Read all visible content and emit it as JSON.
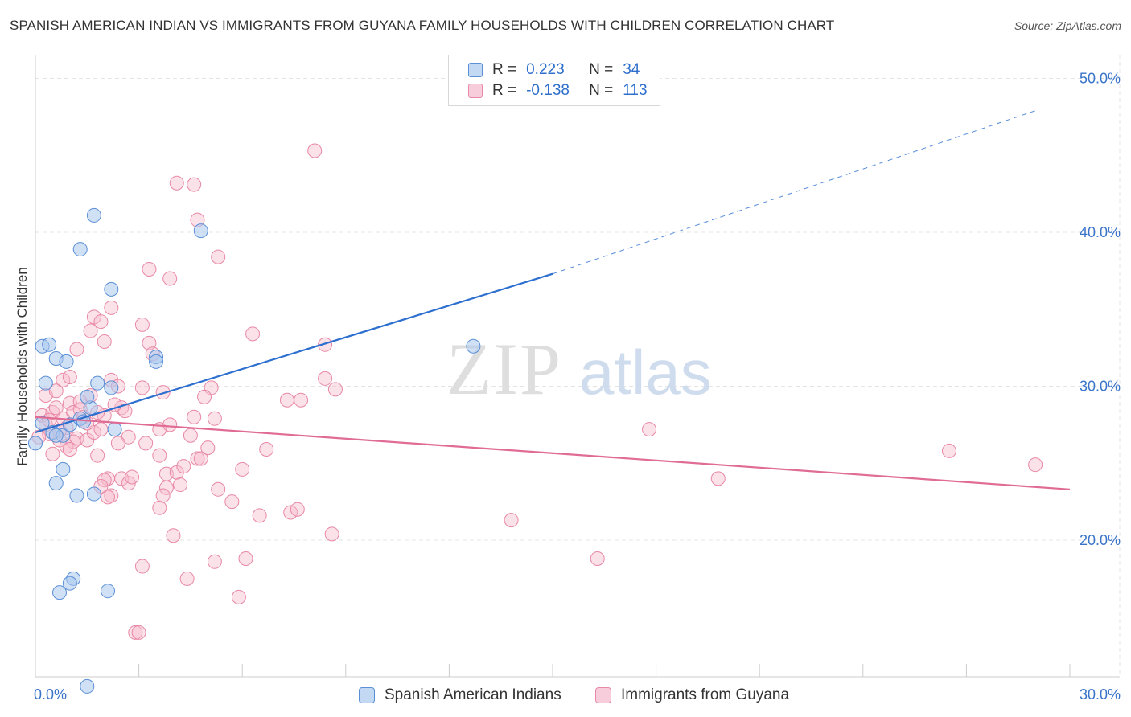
{
  "title": "SPANISH AMERICAN INDIAN VS IMMIGRANTS FROM GUYANA FAMILY HOUSEHOLDS WITH CHILDREN CORRELATION CHART",
  "source": "Source: ZipAtlas.com",
  "watermark": {
    "zip": "ZIP",
    "atlas": "atlas"
  },
  "legend": {
    "series1": {
      "r_label": "R =",
      "r_value": "0.223",
      "n_label": "N =",
      "n_value": "34"
    },
    "series2": {
      "r_label": "R =",
      "r_value": "-0.138",
      "n_label": "N =",
      "n_value": "113"
    }
  },
  "colors": {
    "blue_fill": "#aac8ee",
    "blue_stroke": "#5b8fd6",
    "blue_line": "#2d6fcf",
    "pink_fill": "#f6bccd",
    "pink_stroke": "#e889a6",
    "pink_line": "#e06c95",
    "axis_label": "#3a74c9",
    "grid": "#e4e4e4"
  },
  "chart_data": {
    "type": "scatter",
    "title": "SPANISH AMERICAN INDIAN VS IMMIGRANTS FROM GUYANA FAMILY HOUSEHOLDS WITH CHILDREN CORRELATION CHART",
    "xlabel": "",
    "ylabel": "Family Households with Children",
    "xlim": [
      0,
      30
    ],
    "ylim": [
      10,
      50
    ],
    "x_tick_labels": [
      "0.0%",
      "30.0%"
    ],
    "y_ticks": [
      20,
      30,
      40,
      50
    ],
    "y_tick_labels": [
      "20.0%",
      "30.0%",
      "40.0%",
      "50.0%"
    ],
    "grid": true,
    "legend": [
      "Spanish American Indians",
      "Immigrants from Guyana"
    ],
    "series": [
      {
        "name": "Spanish American Indians",
        "trend": {
          "x0": 0,
          "y0": 27.0,
          "x1": 15.0,
          "y1": 37.3,
          "dash_to_x": 29.0,
          "dash_to_y": 47.9
        },
        "points": [
          [
            0.0,
            26.3
          ],
          [
            0.2,
            32.6
          ],
          [
            0.4,
            32.7
          ],
          [
            0.6,
            31.8
          ],
          [
            0.3,
            30.2
          ],
          [
            0.9,
            31.6
          ],
          [
            0.2,
            27.6
          ],
          [
            0.5,
            27.0
          ],
          [
            0.8,
            26.8
          ],
          [
            1.0,
            27.5
          ],
          [
            1.3,
            27.9
          ],
          [
            1.6,
            28.6
          ],
          [
            1.5,
            29.3
          ],
          [
            1.8,
            30.2
          ],
          [
            2.2,
            29.9
          ],
          [
            0.6,
            23.7
          ],
          [
            0.8,
            24.6
          ],
          [
            1.2,
            22.9
          ],
          [
            1.7,
            23.0
          ],
          [
            1.1,
            17.5
          ],
          [
            1.0,
            17.2
          ],
          [
            0.7,
            16.6
          ],
          [
            2.1,
            16.7
          ],
          [
            1.3,
            38.9
          ],
          [
            1.7,
            41.1
          ],
          [
            2.2,
            36.3
          ],
          [
            3.5,
            31.9
          ],
          [
            3.5,
            31.6
          ],
          [
            4.8,
            40.1
          ],
          [
            12.7,
            32.6
          ],
          [
            1.5,
            10.5
          ],
          [
            0.6,
            26.8
          ],
          [
            1.4,
            27.7
          ],
          [
            2.3,
            27.2
          ]
        ]
      },
      {
        "name": "Immigrants from Guyana",
        "trend": {
          "x0": 0,
          "y0": 28.0,
          "x1": 30.0,
          "y1": 23.3
        },
        "points": [
          [
            0.2,
            28.1
          ],
          [
            0.3,
            27.5
          ],
          [
            0.4,
            26.9
          ],
          [
            0.5,
            28.3
          ],
          [
            0.7,
            26.5
          ],
          [
            0.8,
            27.9
          ],
          [
            0.9,
            27.3
          ],
          [
            1.0,
            28.9
          ],
          [
            1.1,
            28.3
          ],
          [
            1.2,
            26.6
          ],
          [
            1.3,
            28.5
          ],
          [
            1.4,
            28.0
          ],
          [
            0.3,
            29.4
          ],
          [
            0.6,
            29.7
          ],
          [
            0.8,
            30.4
          ],
          [
            1.0,
            30.6
          ],
          [
            0.5,
            25.6
          ],
          [
            1.1,
            26.4
          ],
          [
            1.5,
            26.5
          ],
          [
            1.7,
            27.0
          ],
          [
            1.9,
            27.2
          ],
          [
            2.0,
            28.1
          ],
          [
            2.2,
            30.4
          ],
          [
            2.4,
            30.0
          ],
          [
            2.5,
            28.6
          ],
          [
            2.6,
            28.4
          ],
          [
            2.7,
            26.7
          ],
          [
            1.8,
            25.5
          ],
          [
            2.1,
            24.0
          ],
          [
            2.5,
            24.0
          ],
          [
            2.0,
            23.9
          ],
          [
            2.2,
            22.9
          ],
          [
            2.1,
            22.8
          ],
          [
            2.7,
            23.7
          ],
          [
            1.2,
            32.4
          ],
          [
            1.6,
            33.6
          ],
          [
            1.7,
            34.5
          ],
          [
            1.9,
            34.2
          ],
          [
            2.0,
            32.9
          ],
          [
            2.2,
            35.1
          ],
          [
            3.3,
            37.6
          ],
          [
            3.1,
            34.0
          ],
          [
            3.3,
            32.8
          ],
          [
            3.4,
            32.1
          ],
          [
            3.1,
            29.9
          ],
          [
            3.7,
            29.6
          ],
          [
            3.6,
            27.2
          ],
          [
            3.9,
            27.5
          ],
          [
            3.6,
            25.5
          ],
          [
            3.8,
            24.3
          ],
          [
            4.1,
            24.4
          ],
          [
            4.2,
            23.6
          ],
          [
            3.8,
            23.4
          ],
          [
            3.6,
            22.1
          ],
          [
            3.7,
            22.9
          ],
          [
            4.0,
            20.3
          ],
          [
            3.1,
            18.3
          ],
          [
            2.9,
            14.0
          ],
          [
            3.0,
            14.0
          ],
          [
            4.4,
            17.5
          ],
          [
            3.9,
            37.0
          ],
          [
            4.1,
            43.2
          ],
          [
            4.6,
            43.1
          ],
          [
            4.7,
            40.8
          ],
          [
            5.3,
            38.4
          ],
          [
            5.1,
            29.9
          ],
          [
            4.9,
            29.3
          ],
          [
            5.2,
            27.9
          ],
          [
            4.6,
            28.0
          ],
          [
            4.5,
            26.8
          ],
          [
            4.7,
            25.3
          ],
          [
            4.8,
            25.3
          ],
          [
            5.3,
            23.3
          ],
          [
            5.2,
            18.6
          ],
          [
            6.0,
            24.6
          ],
          [
            5.7,
            22.5
          ],
          [
            6.1,
            18.8
          ],
          [
            5.9,
            16.3
          ],
          [
            6.3,
            33.4
          ],
          [
            6.7,
            25.9
          ],
          [
            6.5,
            21.6
          ],
          [
            7.4,
            21.8
          ],
          [
            7.6,
            22.0
          ],
          [
            7.3,
            29.1
          ],
          [
            7.7,
            29.1
          ],
          [
            8.4,
            32.7
          ],
          [
            8.4,
            30.5
          ],
          [
            8.7,
            29.8
          ],
          [
            8.6,
            20.4
          ],
          [
            8.1,
            45.3
          ],
          [
            13.8,
            21.3
          ],
          [
            16.3,
            18.8
          ],
          [
            17.8,
            27.2
          ],
          [
            19.8,
            24.0
          ],
          [
            26.5,
            25.8
          ],
          [
            29.0,
            24.9
          ],
          [
            0.4,
            27.8
          ],
          [
            0.6,
            28.6
          ],
          [
            0.9,
            26.1
          ],
          [
            1.3,
            29.0
          ],
          [
            1.5,
            27.6
          ],
          [
            1.8,
            28.3
          ],
          [
            2.3,
            28.8
          ],
          [
            0.7,
            27.1
          ],
          [
            1.0,
            25.9
          ],
          [
            2.4,
            26.3
          ],
          [
            1.6,
            29.4
          ],
          [
            1.9,
            23.5
          ],
          [
            3.2,
            26.3
          ],
          [
            4.3,
            24.8
          ],
          [
            5.0,
            26.0
          ],
          [
            2.8,
            24.1
          ],
          [
            0.1,
            26.7
          ]
        ]
      }
    ]
  }
}
